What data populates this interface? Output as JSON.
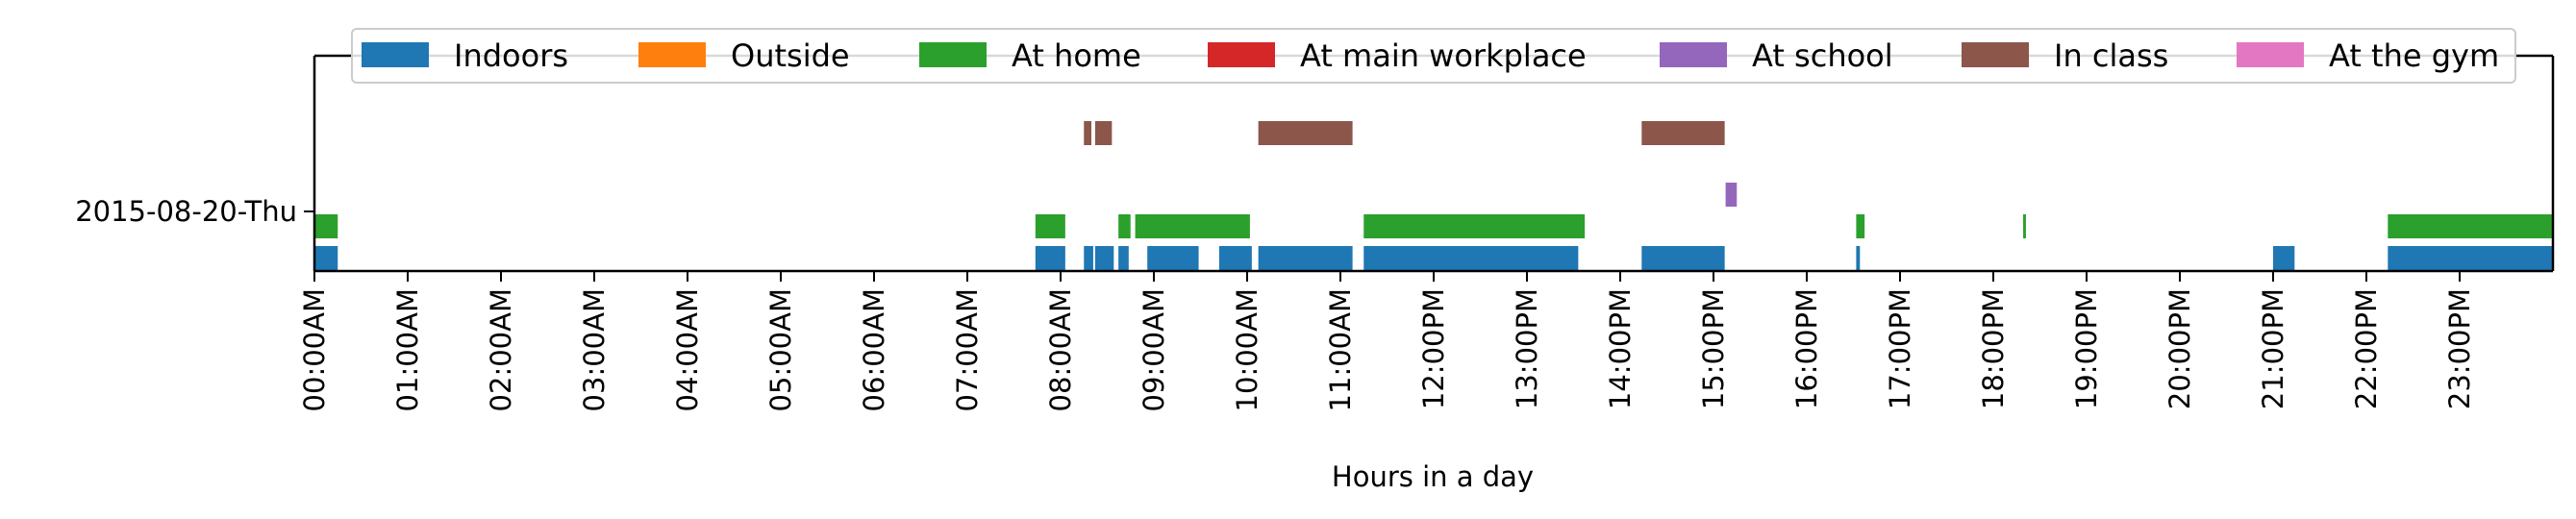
{
  "chart_data": {
    "type": "timeline",
    "xlabel": "Hours in a day",
    "ylabel": "",
    "xlim_hours": [
      0,
      24
    ],
    "x_ticks": [
      {
        "hour": 0,
        "label": "00:00AM"
      },
      {
        "hour": 1,
        "label": "01:00AM"
      },
      {
        "hour": 2,
        "label": "02:00AM"
      },
      {
        "hour": 3,
        "label": "03:00AM"
      },
      {
        "hour": 4,
        "label": "04:00AM"
      },
      {
        "hour": 5,
        "label": "05:00AM"
      },
      {
        "hour": 6,
        "label": "06:00AM"
      },
      {
        "hour": 7,
        "label": "07:00AM"
      },
      {
        "hour": 8,
        "label": "08:00AM"
      },
      {
        "hour": 9,
        "label": "09:00AM"
      },
      {
        "hour": 10,
        "label": "10:00AM"
      },
      {
        "hour": 11,
        "label": "11:00AM"
      },
      {
        "hour": 12,
        "label": "12:00PM"
      },
      {
        "hour": 13,
        "label": "13:00PM"
      },
      {
        "hour": 14,
        "label": "14:00PM"
      },
      {
        "hour": 15,
        "label": "15:00PM"
      },
      {
        "hour": 16,
        "label": "16:00PM"
      },
      {
        "hour": 17,
        "label": "17:00PM"
      },
      {
        "hour": 18,
        "label": "18:00PM"
      },
      {
        "hour": 19,
        "label": "19:00PM"
      },
      {
        "hour": 20,
        "label": "20:00PM"
      },
      {
        "hour": 21,
        "label": "21:00PM"
      },
      {
        "hour": 22,
        "label": "22:00PM"
      },
      {
        "hour": 23,
        "label": "23:00PM"
      }
    ],
    "rows": [
      {
        "label": "2015-08-20-Thu"
      }
    ],
    "legend_position": "top",
    "series": [
      {
        "name": "Indoors",
        "color": "#1f77b4",
        "lane": 0,
        "intervals": [
          [
            0.0,
            0.25
          ],
          [
            7.73,
            8.05
          ],
          [
            8.25,
            8.35
          ],
          [
            8.37,
            8.57
          ],
          [
            8.62,
            8.73
          ],
          [
            8.93,
            9.48
          ],
          [
            9.7,
            10.05
          ],
          [
            10.12,
            11.13
          ],
          [
            11.25,
            13.55
          ],
          [
            14.23,
            15.12
          ],
          [
            16.53,
            16.57
          ],
          [
            21.0,
            21.23
          ],
          [
            22.23,
            24.0
          ]
        ]
      },
      {
        "name": "Outside",
        "color": "#ff7f0e",
        "lane": 3,
        "intervals": []
      },
      {
        "name": "At home",
        "color": "#2ca02c",
        "lane": 1,
        "intervals": [
          [
            0.0,
            0.25
          ],
          [
            7.73,
            8.05
          ],
          [
            8.62,
            8.75
          ],
          [
            8.8,
            10.03
          ],
          [
            11.25,
            13.62
          ],
          [
            16.53,
            16.62
          ],
          [
            18.32,
            18.35
          ],
          [
            22.23,
            24.0
          ]
        ]
      },
      {
        "name": "At main workplace",
        "color": "#d62728",
        "lane": 3,
        "intervals": []
      },
      {
        "name": "At school",
        "color": "#9467bd",
        "lane": 2,
        "intervals": [
          [
            15.13,
            15.25
          ]
        ]
      },
      {
        "name": "In class",
        "color": "#8c564b",
        "lane": 3,
        "intervals": [
          [
            8.25,
            8.33
          ],
          [
            8.37,
            8.55
          ],
          [
            10.12,
            11.13
          ],
          [
            14.23,
            15.12
          ]
        ]
      },
      {
        "name": "At the gym",
        "color": "#e377c2",
        "lane": 4,
        "intervals": []
      }
    ]
  }
}
